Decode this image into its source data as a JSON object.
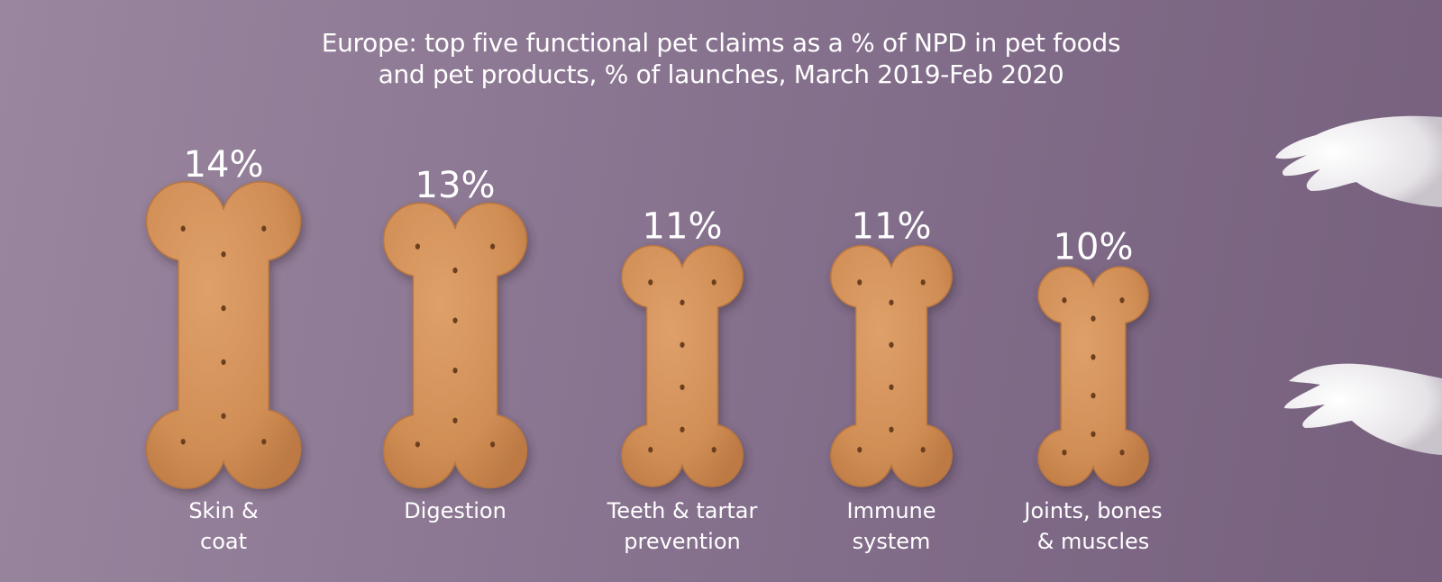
{
  "chart_data": {
    "type": "bar",
    "title_lines": [
      "Europe: top five functional pet claims as a % of NPD in pet foods",
      "and pet products, % of launches, March 2019-Feb 2020"
    ],
    "categories": [
      [
        "Skin &",
        "coat"
      ],
      [
        "Digestion"
      ],
      [
        "Teeth & tartar",
        "prevention"
      ],
      [
        "Immune",
        "system"
      ],
      [
        "Joints, bones",
        "& muscles"
      ]
    ],
    "values": [
      14,
      13,
      11,
      11,
      10
    ],
    "value_labels": [
      "14%",
      "13%",
      "11%",
      "11%",
      "10%"
    ],
    "xlabel": "",
    "ylabel": "",
    "colors": {
      "bone": "#d4935a",
      "bone_edge": "#b87640",
      "text": "#ffffff"
    }
  },
  "decor": {
    "paws": [
      "paw-icon",
      "paw-icon"
    ]
  }
}
